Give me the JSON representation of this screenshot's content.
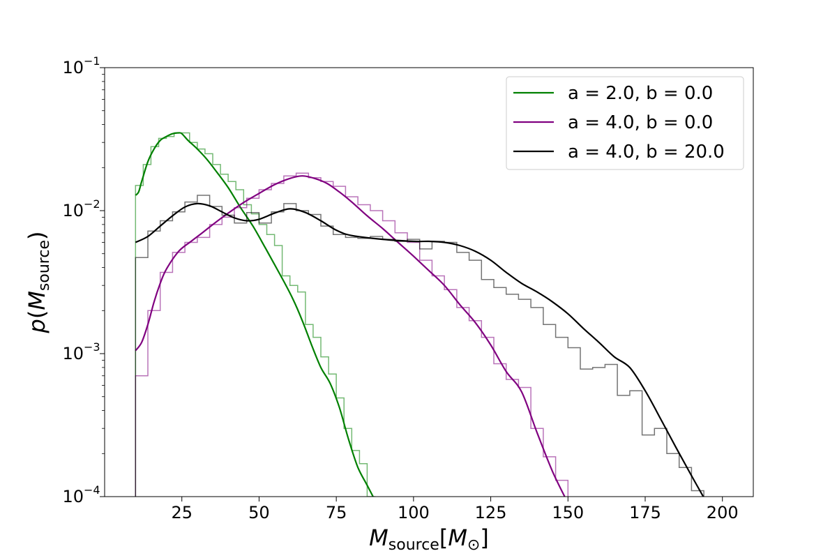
{
  "chart_data": {
    "type": "line",
    "xlabel": "M_source[M_⊙]",
    "ylabel": "p(M_source)",
    "xlim": [
      0,
      210
    ],
    "ylim": [
      0.0001,
      0.1
    ],
    "yscale": "log",
    "x_ticks": [
      25,
      50,
      75,
      100,
      125,
      150,
      175,
      200
    ],
    "y_ticks": [
      {
        "value": 0.1,
        "label": "10",
        "exp": "−1"
      },
      {
        "value": 0.01,
        "label": "10",
        "exp": "−2"
      },
      {
        "value": 0.001,
        "label": "10",
        "exp": "−3"
      },
      {
        "value": 0.0001,
        "label": "10",
        "exp": "−4"
      }
    ],
    "legend_position": "top-right",
    "series": [
      {
        "name": "a = 2.0, b = 0.0",
        "color": "#008000",
        "kde": {
          "x": [
            10,
            11,
            12,
            14,
            16,
            18,
            20,
            22,
            24,
            25,
            27,
            30,
            33,
            36,
            40,
            44,
            48,
            52,
            55,
            58,
            61,
            64,
            67,
            70,
            73,
            76,
            79,
            82,
            85,
            88
          ],
          "y": [
            0.0128,
            0.0135,
            0.016,
            0.022,
            0.027,
            0.031,
            0.033,
            0.0345,
            0.035,
            0.0345,
            0.031,
            0.027,
            0.023,
            0.019,
            0.0145,
            0.0105,
            0.0078,
            0.0055,
            0.0042,
            0.0032,
            0.0024,
            0.0017,
            0.00115,
            0.0008,
            0.00062,
            0.00042,
            0.00025,
            0.00016,
            0.00012,
            9e-05
          ]
        },
        "hist_edges": [
          10,
          12.5,
          15,
          17.5,
          20,
          22.5,
          25,
          27.5,
          30,
          32.5,
          35,
          37.5,
          40,
          42.5,
          45,
          47.5,
          50,
          52.5,
          55,
          57.5,
          60,
          62.5,
          65,
          67.5,
          70,
          72.5,
          75,
          77.5,
          80,
          82.5,
          85,
          87.5
        ],
        "hist_values": [
          0.015,
          0.021,
          0.028,
          0.032,
          0.033,
          0.035,
          0.035,
          0.03,
          0.027,
          0.025,
          0.021,
          0.018,
          0.016,
          0.014,
          0.011,
          0.0095,
          0.008,
          0.0068,
          0.0057,
          0.0035,
          0.003,
          0.0027,
          0.0016,
          0.0013,
          0.00095,
          0.00072,
          0.00049,
          0.0003,
          0.00021,
          0.00017,
          0.0001
        ]
      },
      {
        "name": "a = 4.0, b = 0.0",
        "color": "#800080",
        "kde": {
          "x": [
            10,
            12,
            14,
            16,
            18,
            20,
            24,
            28,
            32,
            36,
            40,
            45,
            50,
            55,
            60,
            64,
            68,
            72,
            76,
            80,
            85,
            90,
            95,
            100,
            105,
            110,
            115,
            120,
            125,
            130,
            135,
            140,
            145,
            150
          ],
          "y": [
            0.00105,
            0.0012,
            0.0016,
            0.0023,
            0.0031,
            0.0039,
            0.0052,
            0.0061,
            0.0071,
            0.0083,
            0.0096,
            0.0114,
            0.0132,
            0.0152,
            0.0168,
            0.0175,
            0.0168,
            0.0155,
            0.0135,
            0.0115,
            0.0092,
            0.0075,
            0.006,
            0.0048,
            0.0038,
            0.003,
            0.0022,
            0.00165,
            0.00115,
            0.00075,
            0.00054,
            0.00028,
            0.00015,
            9e-05
          ]
        },
        "hist_edges": [
          10,
          14,
          18,
          22,
          26,
          30,
          34,
          38,
          42,
          46,
          50,
          54,
          58,
          62,
          66,
          70,
          74,
          78,
          82,
          86,
          90,
          94,
          98,
          102,
          106,
          110,
          114,
          118,
          122,
          126,
          130,
          134,
          138,
          142,
          146,
          150
        ],
        "hist_values": [
          0.0007,
          0.002,
          0.0037,
          0.0051,
          0.006,
          0.0065,
          0.008,
          0.009,
          0.0105,
          0.0122,
          0.014,
          0.0155,
          0.0175,
          0.0183,
          0.017,
          0.016,
          0.0148,
          0.0125,
          0.011,
          0.01,
          0.0085,
          0.007,
          0.006,
          0.0045,
          0.0035,
          0.0028,
          0.0021,
          0.0017,
          0.0013,
          0.00085,
          0.00066,
          0.00058,
          0.0003,
          0.00019,
          0.00013
        ]
      },
      {
        "name": "a = 4.0, b = 20.0",
        "color": "#000000",
        "kde": {
          "x": [
            10,
            14,
            18,
            22,
            26,
            30,
            34,
            38,
            42,
            46,
            50,
            55,
            60,
            65,
            70,
            75,
            80,
            90,
            100,
            105,
            110,
            115,
            120,
            125,
            130,
            135,
            140,
            145,
            150,
            155,
            160,
            165,
            170,
            175,
            180,
            185,
            190,
            195
          ],
          "y": [
            0.006,
            0.0066,
            0.0078,
            0.0092,
            0.0106,
            0.0112,
            0.0108,
            0.0098,
            0.0089,
            0.0085,
            0.0087,
            0.0096,
            0.0103,
            0.0097,
            0.0085,
            0.0073,
            0.0067,
            0.0063,
            0.0061,
            0.0061,
            0.006,
            0.0057,
            0.0052,
            0.0045,
            0.0037,
            0.0031,
            0.0027,
            0.0023,
            0.0019,
            0.0015,
            0.0012,
            0.00095,
            0.0008,
            0.00055,
            0.00035,
            0.00022,
            0.00014,
            9e-05
          ]
        },
        "hist_edges": [
          10,
          14,
          18,
          22,
          26,
          30,
          34,
          38,
          42,
          46,
          50,
          54,
          58,
          62,
          66,
          70,
          74,
          78,
          82,
          86,
          90,
          94,
          98,
          102,
          106,
          110,
          114,
          118,
          122,
          126,
          130,
          134,
          138,
          142,
          146,
          150,
          154,
          158,
          162,
          166,
          170,
          174,
          178,
          182,
          186,
          190,
          194
        ],
        "hist_values": [
          0.0047,
          0.0072,
          0.0085,
          0.0098,
          0.0115,
          0.0128,
          0.0107,
          0.0093,
          0.0082,
          0.0097,
          0.0082,
          0.0098,
          0.0112,
          0.01,
          0.0094,
          0.0078,
          0.0068,
          0.0065,
          0.0064,
          0.0066,
          0.0063,
          0.0061,
          0.0063,
          0.0054,
          0.0061,
          0.006,
          0.0051,
          0.0045,
          0.0033,
          0.0029,
          0.0026,
          0.0024,
          0.0021,
          0.0016,
          0.0013,
          0.0011,
          0.00078,
          0.0008,
          0.00084,
          0.00051,
          0.00055,
          0.00027,
          0.0003,
          0.0002,
          0.00016,
          0.00011
        ]
      }
    ]
  }
}
